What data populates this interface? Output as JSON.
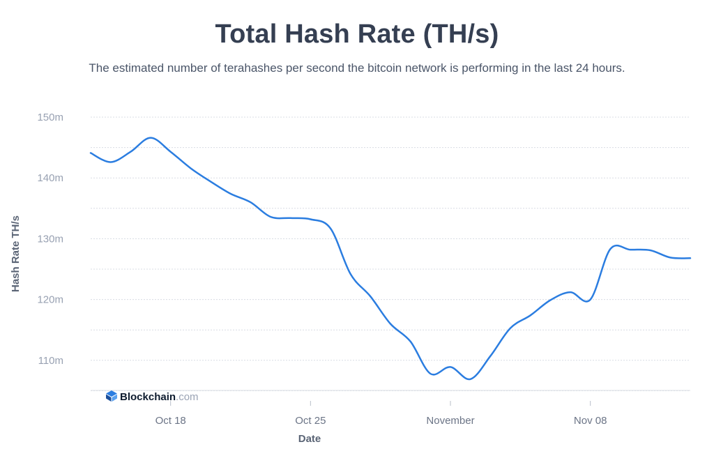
{
  "header": {
    "title": "Total Hash Rate (TH/s)",
    "subtitle": "The estimated number of terahashes per second the bitcoin network is performing in the last 24 hours."
  },
  "watermark": {
    "brand": "Blockchain",
    "suffix": ".com"
  },
  "colors": {
    "line": "#2b7de0",
    "grid": "#d8dce3",
    "axis": "#b9bfca"
  },
  "chart_data": {
    "type": "line",
    "title": "Total Hash Rate (TH/s)",
    "xlabel": "Date",
    "ylabel": "Hash Rate TH/s",
    "ylim": [
      104,
      150
    ],
    "xlim": [
      "2021-10-14",
      "2021-11-13"
    ],
    "grid": true,
    "y_ticks": [
      {
        "value": 110,
        "label": "110m"
      },
      {
        "value": 120,
        "label": "120m"
      },
      {
        "value": 130,
        "label": "130m"
      },
      {
        "value": 140,
        "label": "140m"
      },
      {
        "value": 150,
        "label": "150m"
      }
    ],
    "x_ticks": [
      {
        "value": "2021-10-18",
        "label": "Oct 18"
      },
      {
        "value": "2021-10-25",
        "label": "Oct 25"
      },
      {
        "value": "2021-11-01",
        "label": "November"
      },
      {
        "value": "2021-11-08",
        "label": "Nov 08"
      }
    ],
    "series": [
      {
        "x": [
          "2021-10-14",
          "2021-10-15",
          "2021-10-16",
          "2021-10-17",
          "2021-10-18",
          "2021-10-19",
          "2021-10-20",
          "2021-10-21",
          "2021-10-22",
          "2021-10-23",
          "2021-10-24",
          "2021-10-25",
          "2021-10-26",
          "2021-10-27",
          "2021-10-28",
          "2021-10-29",
          "2021-10-30",
          "2021-10-31",
          "2021-11-01",
          "2021-11-02",
          "2021-11-03",
          "2021-11-04",
          "2021-11-05",
          "2021-11-06",
          "2021-11-07",
          "2021-11-08",
          "2021-11-09",
          "2021-11-10",
          "2021-11-11",
          "2021-11-12",
          "2021-11-13"
        ],
        "values": [
          144.1,
          142.6,
          144.3,
          146.6,
          144.3,
          141.6,
          139.4,
          137.4,
          136.0,
          133.6,
          133.4,
          133.2,
          131.7,
          124.2,
          120.5,
          116.0,
          113.1,
          107.8,
          108.9,
          106.9,
          110.7,
          115.3,
          117.4,
          119.9,
          121.2,
          120.0,
          128.3,
          128.2,
          128.1,
          126.9,
          126.8
        ]
      }
    ]
  }
}
